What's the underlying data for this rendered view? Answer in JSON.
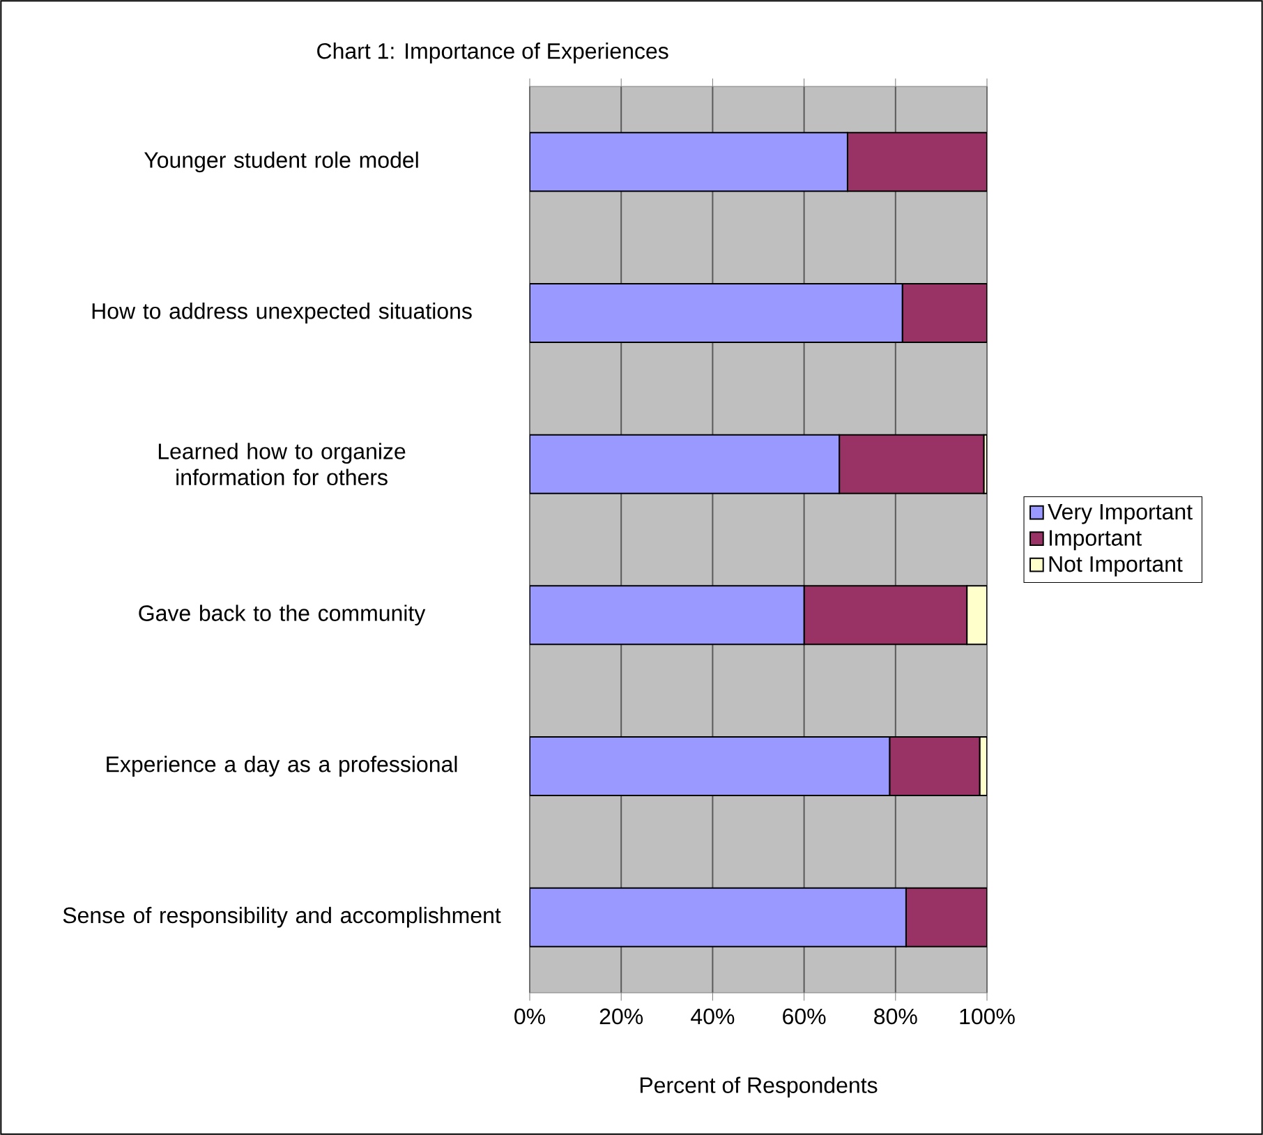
{
  "chart_data": {
    "type": "bar",
    "orientation": "horizontal",
    "stacked": true,
    "title": "Chart 1: Importance of Experiences",
    "xlabel": "Percent of Respondents",
    "categories": [
      "Younger student role model",
      "How to address unexpected situations",
      "Learned how to organize information for others",
      "Gave back to the community",
      "Experience a day as a professional",
      "Sense of responsibility and accomplishment"
    ],
    "series": [
      {
        "name": "Very Important",
        "color": "#9999ff",
        "values": [
          69.5,
          81.5,
          67.7,
          60,
          78.7,
          82.3
        ]
      },
      {
        "name": "Important",
        "color": "#993366",
        "values": [
          30.5,
          18.5,
          31.6,
          35.6,
          19.7,
          17.7
        ]
      },
      {
        "name": "Not Important",
        "color": "#ffffcc",
        "values": [
          0,
          0,
          0.7,
          4.4,
          1.6,
          0
        ]
      }
    ],
    "xlim": [
      0,
      100
    ],
    "xticks": [
      {
        "value": 0,
        "label": "0%"
      },
      {
        "value": 20,
        "label": "20%"
      },
      {
        "value": 40,
        "label": "40%"
      },
      {
        "value": 60,
        "label": "60%"
      },
      {
        "value": 80,
        "label": "80%"
      },
      {
        "value": 100,
        "label": "100%"
      }
    ],
    "grid": "x",
    "legend": "right"
  }
}
